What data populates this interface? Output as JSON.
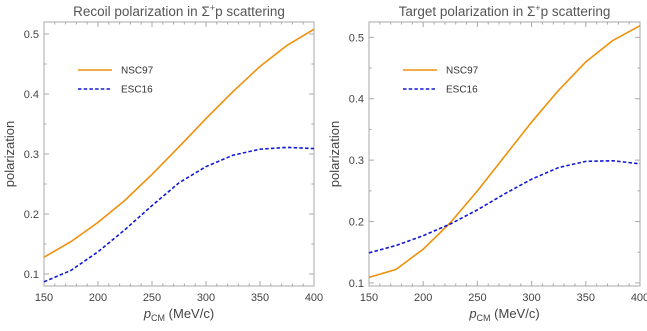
{
  "chart_data": [
    {
      "type": "line",
      "title": "Recoil polarization in Σ⁺p scattering",
      "xlabel": "p_CM (MeV/c)",
      "ylabel": "polarization",
      "xlim": [
        150,
        400
      ],
      "ylim": [
        0.08,
        0.52
      ],
      "xticks": [
        150,
        200,
        250,
        300,
        350,
        400
      ],
      "yticks": [
        0.1,
        0.2,
        0.3,
        0.4,
        0.5
      ],
      "legend_position": "top-left",
      "series": [
        {
          "name": "NSC97",
          "color": "#f0900a",
          "style": "solid",
          "x": [
            150,
            175,
            200,
            225,
            250,
            275,
            300,
            325,
            350,
            375,
            400
          ],
          "y": [
            0.128,
            0.154,
            0.186,
            0.223,
            0.266,
            0.312,
            0.359,
            0.404,
            0.446,
            0.481,
            0.508
          ]
        },
        {
          "name": "ESC16",
          "color": "#1018d8",
          "style": "dashed",
          "x": [
            150,
            175,
            200,
            225,
            250,
            275,
            300,
            325,
            350,
            375,
            400
          ],
          "y": [
            0.087,
            0.106,
            0.137,
            0.174,
            0.214,
            0.252,
            0.279,
            0.298,
            0.308,
            0.311,
            0.309
          ]
        }
      ]
    },
    {
      "type": "line",
      "title": "Target polarization in Σ⁺p scattering",
      "xlabel": "p_CM (MeV/c)",
      "ylabel": "polarization",
      "xlim": [
        150,
        400
      ],
      "ylim": [
        0.095,
        0.525
      ],
      "xticks": [
        150,
        200,
        250,
        300,
        350,
        400
      ],
      "yticks": [
        0.1,
        0.2,
        0.3,
        0.4,
        0.5
      ],
      "legend_position": "top-left",
      "series": [
        {
          "name": "NSC97",
          "color": "#f0900a",
          "style": "solid",
          "x": [
            150,
            175,
            200,
            225,
            250,
            275,
            300,
            325,
            350,
            375,
            400
          ],
          "y": [
            0.109,
            0.122,
            0.155,
            0.198,
            0.25,
            0.306,
            0.362,
            0.414,
            0.46,
            0.495,
            0.519
          ]
        },
        {
          "name": "ESC16",
          "color": "#1018d8",
          "style": "dashed",
          "x": [
            150,
            175,
            200,
            225,
            250,
            275,
            300,
            325,
            350,
            375,
            400
          ],
          "y": [
            0.149,
            0.161,
            0.177,
            0.196,
            0.219,
            0.245,
            0.269,
            0.288,
            0.298,
            0.299,
            0.294
          ]
        }
      ]
    }
  ]
}
